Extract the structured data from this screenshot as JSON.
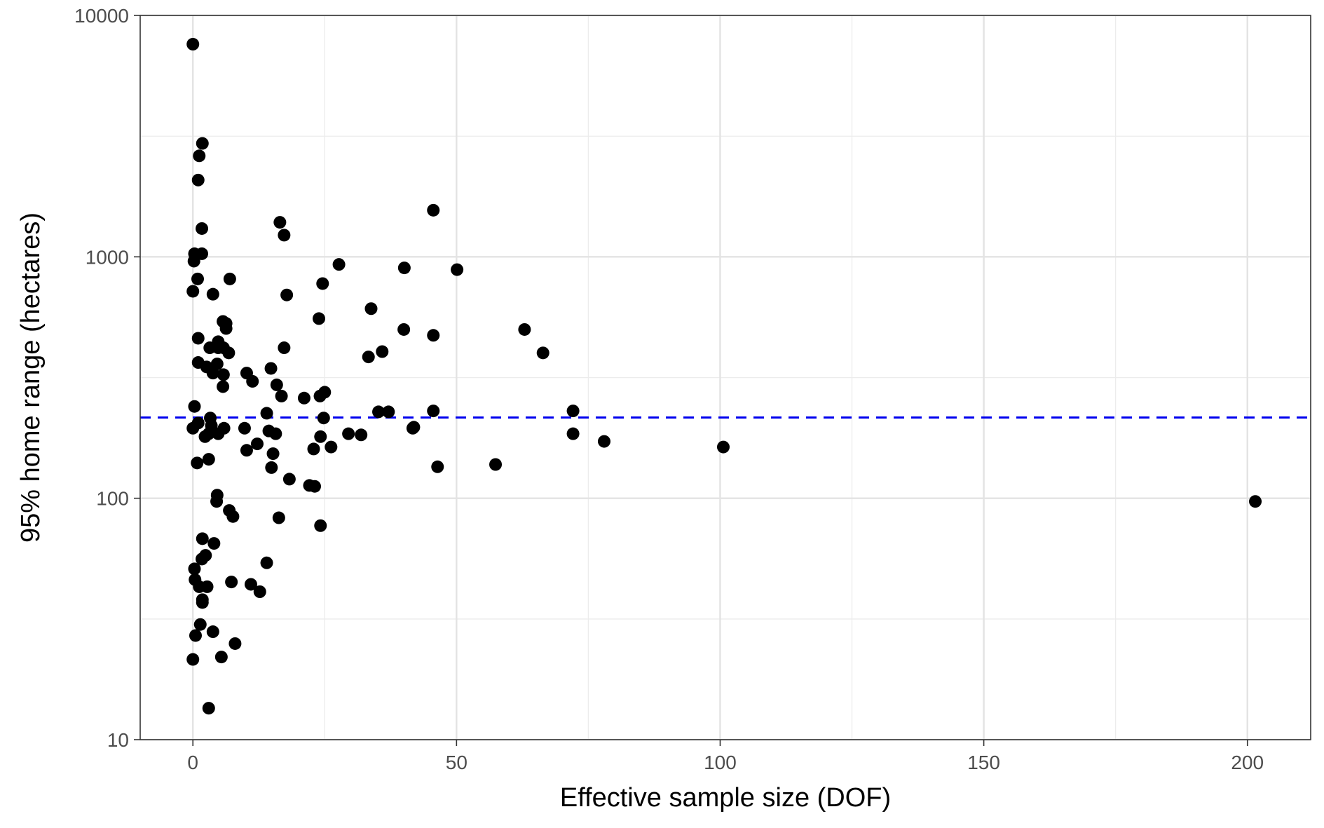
{
  "chart_data": {
    "type": "scatter",
    "title": "",
    "xlabel": "Effective sample size (DOF)",
    "ylabel": "95% home range (hectares)",
    "xlim": [
      -10,
      212
    ],
    "ylim": [
      10,
      10000
    ],
    "y_scale": "log10",
    "x_ticks": [
      0,
      50,
      100,
      150,
      200
    ],
    "x_tick_labels": [
      "0",
      "50",
      "100",
      "150",
      "200"
    ],
    "x_minor_ticks": [
      25,
      75,
      125,
      175
    ],
    "y_ticks": [
      10,
      100,
      1000,
      10000
    ],
    "y_tick_labels": [
      "10",
      "100",
      "1000",
      "10000"
    ],
    "y_minor_ticks": [
      31.6,
      316,
      3160
    ],
    "grid": true,
    "legend": "none",
    "reference_line": {
      "y": 216,
      "style": "dashed",
      "color": "#0000ee"
    },
    "point_color": "#000000",
    "points": [
      [
        0,
        7600
      ],
      [
        1.8,
        2950
      ],
      [
        1.2,
        2620
      ],
      [
        1.0,
        2080
      ],
      [
        1.7,
        1310
      ],
      [
        0.3,
        1030
      ],
      [
        1.7,
        1030
      ],
      [
        0.2,
        960
      ],
      [
        0.9,
        810
      ],
      [
        0,
        720
      ],
      [
        7.0,
        810
      ],
      [
        3.8,
        700
      ],
      [
        5.7,
        540
      ],
      [
        6.3,
        530
      ],
      [
        6.3,
        505
      ],
      [
        1.0,
        460
      ],
      [
        4.8,
        445
      ],
      [
        3.2,
        420
      ],
      [
        4.8,
        420
      ],
      [
        5.8,
        420
      ],
      [
        6.8,
        400
      ],
      [
        1.0,
        365
      ],
      [
        2.6,
        350
      ],
      [
        4.6,
        360
      ],
      [
        3.8,
        330
      ],
      [
        5.8,
        325
      ],
      [
        5.7,
        290
      ],
      [
        0.3,
        240
      ],
      [
        0,
        195
      ],
      [
        1.0,
        205
      ],
      [
        3.3,
        215
      ],
      [
        3.5,
        200
      ],
      [
        5.9,
        195
      ],
      [
        2.3,
        180
      ],
      [
        4.8,
        185
      ],
      [
        3.0,
        185
      ],
      [
        0.8,
        140
      ],
      [
        3.0,
        145
      ],
      [
        4.6,
        103
      ],
      [
        4.5,
        97
      ],
      [
        6.9,
        89
      ],
      [
        7.6,
        84
      ],
      [
        1.8,
        68
      ],
      [
        4.0,
        65
      ],
      [
        2.4,
        58
      ],
      [
        1.7,
        56
      ],
      [
        0.3,
        51
      ],
      [
        0.4,
        46
      ],
      [
        1.2,
        43
      ],
      [
        2.7,
        43
      ],
      [
        1.8,
        38
      ],
      [
        1.8,
        37
      ],
      [
        7.3,
        45
      ],
      [
        1.4,
        30
      ],
      [
        0.5,
        27
      ],
      [
        3.8,
        28
      ],
      [
        5.4,
        22
      ],
      [
        8.0,
        25
      ],
      [
        0,
        21.5
      ],
      [
        3.0,
        13.5
      ],
      [
        10.2,
        330
      ],
      [
        11.3,
        305
      ],
      [
        16.5,
        1390
      ],
      [
        17.3,
        1230
      ],
      [
        17.8,
        695
      ],
      [
        17.3,
        420
      ],
      [
        14.8,
        345
      ],
      [
        15.9,
        295
      ],
      [
        16.8,
        265
      ],
      [
        21.1,
        260
      ],
      [
        24.1,
        265
      ],
      [
        25.0,
        275
      ],
      [
        14.0,
        225
      ],
      [
        24.8,
        215
      ],
      [
        9.8,
        195
      ],
      [
        14.4,
        190
      ],
      [
        15.7,
        185
      ],
      [
        24.2,
        180
      ],
      [
        10.2,
        158
      ],
      [
        12.2,
        168
      ],
      [
        15.2,
        153
      ],
      [
        14.9,
        134
      ],
      [
        22.9,
        160
      ],
      [
        26.2,
        163
      ],
      [
        18.3,
        120
      ],
      [
        22.1,
        113
      ],
      [
        23.1,
        112
      ],
      [
        16.3,
        83
      ],
      [
        24.2,
        77
      ],
      [
        14.0,
        54
      ],
      [
        11.0,
        44
      ],
      [
        12.7,
        41
      ],
      [
        23.9,
        555
      ],
      [
        24.6,
        775
      ],
      [
        27.7,
        930
      ],
      [
        29.5,
        185
      ],
      [
        31.9,
        183
      ],
      [
        33.3,
        385
      ],
      [
        33.8,
        610
      ],
      [
        35.2,
        228
      ],
      [
        35.9,
        405
      ],
      [
        37.1,
        228
      ],
      [
        40.0,
        500
      ],
      [
        40.1,
        900
      ],
      [
        41.7,
        195
      ],
      [
        41.9,
        197
      ],
      [
        45.6,
        1560
      ],
      [
        45.6,
        473
      ],
      [
        45.6,
        230
      ],
      [
        46.4,
        135
      ],
      [
        50.1,
        885
      ],
      [
        57.4,
        138
      ],
      [
        62.9,
        500
      ],
      [
        66.4,
        400
      ],
      [
        72.1,
        230
      ],
      [
        72.1,
        185
      ],
      [
        78.0,
        172
      ],
      [
        100.6,
        163
      ],
      [
        201.5,
        97
      ]
    ]
  }
}
